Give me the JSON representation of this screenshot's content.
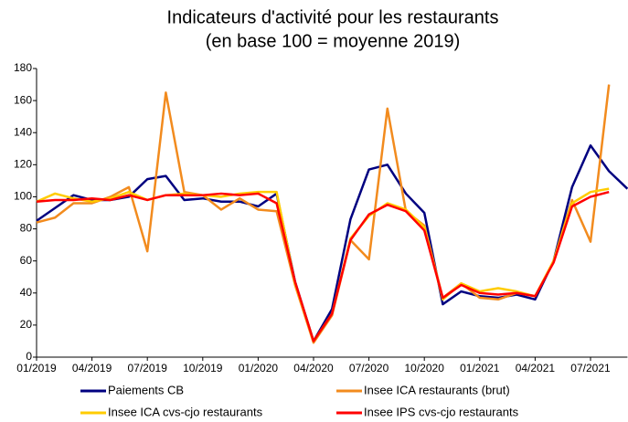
{
  "chart_data": {
    "type": "line",
    "title": "Indicateurs d'activité pour les restaurants",
    "subtitle": "(en base 100 = moyenne 2019)",
    "categories": [
      "01/2019",
      null,
      null,
      "04/2019",
      null,
      null,
      "07/2019",
      null,
      null,
      "10/2019",
      null,
      null,
      "01/2020",
      null,
      null,
      "04/2020",
      null,
      null,
      "07/2020",
      null,
      null,
      "10/2020",
      null,
      null,
      "01/2021",
      null,
      null,
      "04/2021",
      null,
      null,
      "07/2021",
      null,
      null
    ],
    "series": [
      {
        "name": "Paiements CB",
        "color": "#000080",
        "values": [
          85,
          93,
          101,
          98,
          98,
          100,
          111,
          113,
          98,
          99,
          97,
          97,
          94,
          102,
          47,
          10,
          30,
          86,
          117,
          120,
          102,
          90,
          33,
          41,
          38,
          37,
          39,
          36,
          60,
          106,
          132,
          116,
          105
        ]
      },
      {
        "name": "Insee ICA restaurants (brut)",
        "color": "#f28b1e",
        "values": [
          84,
          87,
          96,
          96,
          100,
          106,
          66,
          165,
          103,
          101,
          92,
          99,
          92,
          91,
          45,
          9,
          26,
          73,
          61,
          155,
          91,
          82,
          37,
          46,
          37,
          36,
          40,
          38,
          60,
          98,
          72,
          170,
          null
        ]
      },
      {
        "name": "Insee ICA cvs-cjo restaurants",
        "color": "#ffcc00",
        "values": [
          97,
          102,
          99,
          97,
          99,
          103,
          98,
          101,
          102,
          101,
          100,
          102,
          103,
          103,
          46,
          10,
          27,
          74,
          88,
          96,
          92,
          81,
          36,
          46,
          41,
          43,
          41,
          38,
          60,
          96,
          103,
          105,
          null
        ]
      },
      {
        "name": "Insee IPS cvs-cjo restaurants",
        "color": "#ff0000",
        "values": [
          97,
          98,
          98,
          99,
          98,
          101,
          98,
          101,
          101,
          101,
          102,
          101,
          102,
          96,
          47,
          10,
          27,
          73,
          89,
          95,
          91,
          79,
          37,
          45,
          40,
          39,
          40,
          38,
          59,
          94,
          100,
          103,
          null
        ]
      }
    ],
    "ylim": [
      0,
      180
    ],
    "yticks": [
      0,
      20,
      40,
      60,
      80,
      100,
      120,
      140,
      160,
      180
    ],
    "grid": false,
    "legend": "bottom"
  }
}
